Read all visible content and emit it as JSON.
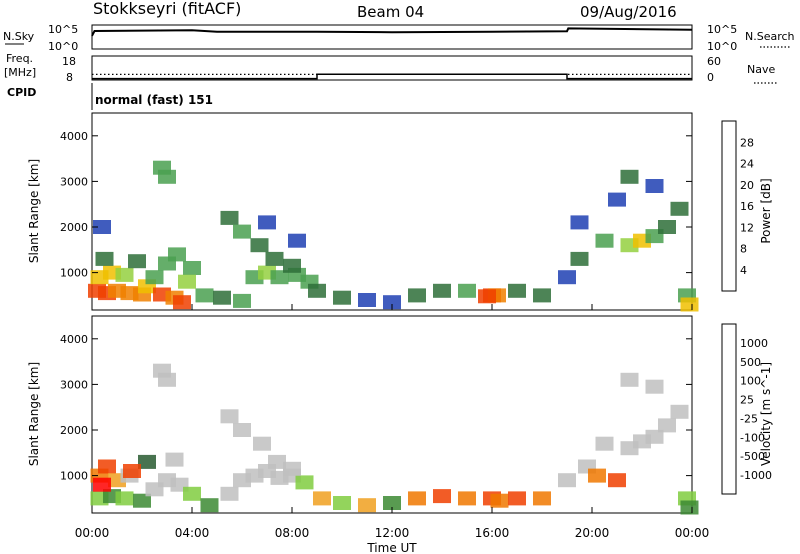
{
  "header": {
    "station": "Stokkseyri (fitACF)",
    "beam": "Beam 04",
    "date": "09/Aug/2016"
  },
  "nsky_panel": {
    "left_label": "N.Sky",
    "left_ticks": [
      "10^5",
      "10^0"
    ],
    "right_ticks": [
      "10^5",
      "10^0"
    ],
    "right_label": "N.Search"
  },
  "freq_panel": {
    "left_label_1": "Freq.",
    "left_label_2": "[MHz]",
    "left_ticks": [
      "18",
      "8"
    ],
    "right_ticks": [
      "60",
      "0"
    ],
    "right_label": "Nave",
    "cpid_label": "CPID",
    "cpid_value": "normal (fast) 151"
  },
  "colors": {
    "power_scale": [
      "#0000ff",
      "#1f3fb3",
      "#2e6e38",
      "#4aa050",
      "#94d040",
      "#f0c000",
      "#f08000",
      "#f04000",
      "#ff0000"
    ],
    "velocity_scale": [
      "#3050c8",
      "#285a30",
      "#3c8a32",
      "#80cc40",
      "#c0c0c0",
      "#c0c0c0",
      "#f0a020",
      "#f07800",
      "#f04000",
      "#ff0000"
    ]
  },
  "chart_data": [
    {
      "type": "line",
      "name": "nsky-nsearch",
      "x_range_hours": [
        0,
        24
      ],
      "nsky_level_note": "",
      "series": [
        {
          "x": [
            0,
            0.1,
            4,
            5,
            9,
            12,
            16,
            19,
            19.05,
            24
          ],
          "y": [
            0.55,
            0.75,
            0.78,
            0.72,
            0.72,
            0.7,
            0.72,
            0.74,
            0.86,
            0.8
          ]
        }
      ]
    },
    {
      "type": "line",
      "name": "freq-nave",
      "x_range_hours": [
        0,
        24
      ],
      "series": [
        {
          "x": [
            0,
            9,
            9,
            19,
            19,
            24
          ],
          "y": [
            8.6,
            8.6,
            10.4,
            10.4,
            8.6,
            8.6
          ]
        }
      ],
      "nave_level": 14
    },
    {
      "type": "heatmap",
      "name": "power",
      "xlabel": "",
      "ylabel": "Slant Range [km]",
      "xlim_hours": [
        0,
        24
      ],
      "ylim_km": [
        180,
        4500
      ],
      "yticks": [
        1000,
        2000,
        3000,
        4000
      ],
      "colorbar": {
        "label": "Power [dB]",
        "ticks": [
          4,
          8,
          12,
          16,
          20,
          24,
          28
        ],
        "range": [
          0,
          32
        ]
      },
      "cells": [
        [
          0.2,
          600,
          28
        ],
        [
          0.6,
          550,
          26
        ],
        [
          1.0,
          600,
          24
        ],
        [
          1.5,
          550,
          24
        ],
        [
          2.0,
          520,
          22
        ],
        [
          0.3,
          900,
          20
        ],
        [
          0.8,
          1000,
          18
        ],
        [
          1.3,
          950,
          16
        ],
        [
          2.2,
          700,
          18
        ],
        [
          2.8,
          520,
          26
        ],
        [
          3.3,
          450,
          24
        ],
        [
          3.6,
          350,
          28
        ],
        [
          2.5,
          900,
          14
        ],
        [
          3.0,
          1200,
          12
        ],
        [
          3.4,
          1400,
          12
        ],
        [
          1.8,
          1250,
          10
        ],
        [
          0.5,
          1300,
          8
        ],
        [
          4.5,
          500,
          12
        ],
        [
          5.2,
          450,
          10
        ],
        [
          6.0,
          380,
          12
        ],
        [
          6.5,
          900,
          14
        ],
        [
          7.0,
          1000,
          16
        ],
        [
          7.5,
          900,
          12
        ],
        [
          8.2,
          950,
          14
        ],
        [
          8.7,
          800,
          12
        ],
        [
          9.0,
          600,
          10
        ],
        [
          5.5,
          2200,
          10
        ],
        [
          6.0,
          1900,
          12
        ],
        [
          6.7,
          1600,
          10
        ],
        [
          7.3,
          1300,
          8
        ],
        [
          8.0,
          1150,
          8
        ],
        [
          7.0,
          2100,
          6
        ],
        [
          8.2,
          1700,
          6
        ],
        [
          10.0,
          450,
          8
        ],
        [
          11.0,
          400,
          6
        ],
        [
          12.0,
          350,
          6
        ],
        [
          13.0,
          500,
          8
        ],
        [
          14.0,
          600,
          10
        ],
        [
          15.0,
          600,
          12
        ],
        [
          16.0,
          500,
          26
        ],
        [
          16.2,
          500,
          24
        ],
        [
          15.8,
          480,
          28
        ],
        [
          17.0,
          600,
          10
        ],
        [
          18.0,
          500,
          8
        ],
        [
          19.0,
          900,
          6
        ],
        [
          19.5,
          1300,
          8
        ],
        [
          20.5,
          1700,
          12
        ],
        [
          21.5,
          1600,
          16
        ],
        [
          22.0,
          1700,
          18
        ],
        [
          22.5,
          1800,
          12
        ],
        [
          23.0,
          2000,
          10
        ],
        [
          23.5,
          2400,
          8
        ],
        [
          19.5,
          2100,
          6
        ],
        [
          21.0,
          2600,
          6
        ],
        [
          23.8,
          500,
          14
        ],
        [
          23.9,
          300,
          20
        ],
        [
          2.8,
          3300,
          12
        ],
        [
          3.0,
          3100,
          14
        ],
        [
          21.5,
          3100,
          8
        ],
        [
          22.5,
          2900,
          6
        ],
        [
          0.4,
          2000,
          6
        ],
        [
          4.0,
          1100,
          14
        ],
        [
          3.8,
          800,
          16
        ]
      ]
    },
    {
      "type": "heatmap",
      "name": "velocity",
      "xlabel": "Time UT",
      "ylabel": "Slant Range [km]",
      "xlim_hours": [
        0,
        24
      ],
      "ylim_km": [
        180,
        4500
      ],
      "xticks": [
        "00:00",
        "04:00",
        "08:00",
        "12:00",
        "16:00",
        "20:00",
        "00:00"
      ],
      "yticks": [
        1000,
        2000,
        3000,
        4000
      ],
      "colorbar": {
        "label": "Velocity [m s^-1]",
        "ticks": [
          1000,
          500,
          100,
          25,
          -25,
          -100,
          -500,
          -1000
        ]
      },
      "cells": [
        [
          0.3,
          500,
          3
        ],
        [
          0.8,
          550,
          2
        ],
        [
          1.3,
          500,
          3
        ],
        [
          2.0,
          450,
          2
        ],
        [
          2.5,
          700,
          4
        ],
        [
          3.0,
          900,
          4
        ],
        [
          3.5,
          800,
          5
        ],
        [
          0.3,
          1000,
          7
        ],
        [
          0.6,
          1200,
          8
        ],
        [
          1.0,
          900,
          6
        ],
        [
          1.5,
          1000,
          4
        ],
        [
          4.0,
          600,
          3
        ],
        [
          4.7,
          350,
          2
        ],
        [
          5.5,
          600,
          4
        ],
        [
          6.0,
          900,
          4
        ],
        [
          6.5,
          1000,
          4
        ],
        [
          7.0,
          1100,
          5
        ],
        [
          7.5,
          950,
          4
        ],
        [
          8.0,
          1000,
          4
        ],
        [
          8.5,
          850,
          3
        ],
        [
          9.2,
          500,
          6
        ],
        [
          5.5,
          2300,
          5
        ],
        [
          6.0,
          2000,
          4
        ],
        [
          6.8,
          1700,
          4
        ],
        [
          7.4,
          1300,
          4
        ],
        [
          8.0,
          1150,
          4
        ],
        [
          10.0,
          400,
          3
        ],
        [
          11.0,
          350,
          6
        ],
        [
          12.0,
          400,
          2
        ],
        [
          13.0,
          500,
          7
        ],
        [
          14.0,
          550,
          8
        ],
        [
          15.0,
          500,
          7
        ],
        [
          16.0,
          500,
          8
        ],
        [
          16.3,
          450,
          7
        ],
        [
          17.0,
          500,
          8
        ],
        [
          18.0,
          500,
          7
        ],
        [
          19.0,
          900,
          4
        ],
        [
          19.8,
          1200,
          5
        ],
        [
          20.5,
          1700,
          5
        ],
        [
          21.5,
          1600,
          4
        ],
        [
          22.0,
          1750,
          5
        ],
        [
          22.5,
          1850,
          4
        ],
        [
          23.0,
          2100,
          4
        ],
        [
          23.5,
          2400,
          5
        ],
        [
          23.8,
          500,
          3
        ],
        [
          23.9,
          300,
          2
        ],
        [
          2.8,
          3300,
          4
        ],
        [
          3.0,
          3100,
          5
        ],
        [
          21.5,
          3100,
          4
        ],
        [
          22.5,
          2950,
          5
        ],
        [
          0.4,
          800,
          9
        ],
        [
          2.2,
          1300,
          1
        ],
        [
          3.3,
          1350,
          5
        ],
        [
          1.6,
          1100,
          8
        ],
        [
          20.2,
          1000,
          7
        ],
        [
          21.0,
          900,
          8
        ]
      ]
    }
  ]
}
